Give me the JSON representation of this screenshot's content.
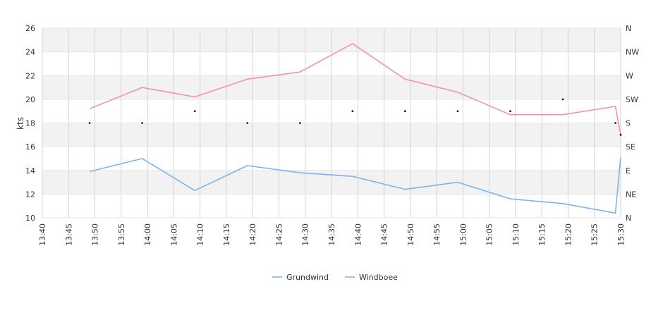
{
  "chart_data": {
    "type": "line",
    "ylabel": "kts",
    "ylim": [
      10,
      26
    ],
    "yticks": [
      10,
      12,
      14,
      16,
      18,
      20,
      22,
      24,
      26
    ],
    "xlim_minutes": [
      0,
      110
    ],
    "xticks": [
      "13:40",
      "13:45",
      "13:50",
      "13:55",
      "14:00",
      "14:05",
      "14:10",
      "14:15",
      "14:20",
      "14:25",
      "14:30",
      "14:35",
      "14:40",
      "14:45",
      "14:50",
      "14:55",
      "15:00",
      "15:05",
      "15:10",
      "15:15",
      "15:20",
      "15:25",
      "15:30"
    ],
    "right_axis": {
      "labels": [
        "N",
        "NE",
        "E",
        "SE",
        "S",
        "SW",
        "W",
        "NW",
        "N"
      ]
    },
    "series": [
      {
        "name": "Grundwind",
        "color": "#7cb5ec",
        "x": [
          "13:49",
          "13:59",
          "14:09",
          "14:19",
          "14:29",
          "14:39",
          "14:49",
          "14:59",
          "15:09",
          "15:19",
          "15:29",
          "15:30"
        ],
        "values": [
          13.9,
          15.0,
          12.3,
          14.4,
          13.8,
          13.5,
          12.4,
          13.0,
          11.6,
          11.2,
          10.4,
          15.1
        ]
      },
      {
        "name": "Windboee",
        "color": "#f08fbe",
        "x": [
          "13:49",
          "13:59",
          "14:09",
          "14:19",
          "14:29",
          "14:39",
          "14:49",
          "14:59",
          "15:09",
          "15:19",
          "15:29",
          "15:30"
        ],
        "values": [
          19.2,
          21.0,
          20.2,
          21.7,
          22.3,
          24.7,
          21.7,
          20.6,
          18.7,
          18.7,
          19.4,
          17.0
        ]
      }
    ],
    "direction_markers": [
      {
        "x": "13:49",
        "direction": "S"
      },
      {
        "x": "13:59",
        "direction": "S"
      },
      {
        "x": "14:09",
        "direction": "SSW"
      },
      {
        "x": "14:19",
        "direction": "S"
      },
      {
        "x": "14:29",
        "direction": "S"
      },
      {
        "x": "14:39",
        "direction": "SSW"
      },
      {
        "x": "14:49",
        "direction": "SSW"
      },
      {
        "x": "14:59",
        "direction": "SSW"
      },
      {
        "x": "15:09",
        "direction": "SSW"
      },
      {
        "x": "15:19",
        "direction": "SW"
      },
      {
        "x": "15:29",
        "direction": "S"
      },
      {
        "x": "15:30",
        "direction": "SSE"
      }
    ],
    "legend_position": "bottom-center",
    "grid": true
  }
}
